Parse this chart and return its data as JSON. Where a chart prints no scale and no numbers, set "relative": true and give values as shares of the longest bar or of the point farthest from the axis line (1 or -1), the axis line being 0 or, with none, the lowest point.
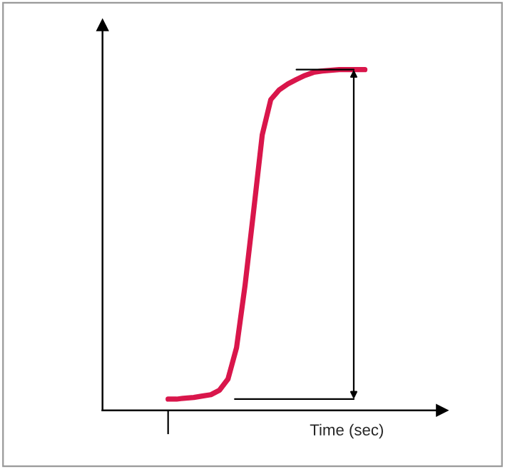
{
  "chart_data": {
    "type": "line",
    "relative": true,
    "xlabel": "Time (sec)",
    "categories": [
      null,
      null,
      null,
      null,
      null,
      null,
      null,
      null,
      null,
      null,
      null,
      null,
      null,
      null,
      null,
      null,
      null,
      null,
      null,
      null,
      null,
      null,
      null,
      null
    ],
    "series": [
      {
        "color": "#d9164b",
        "values": [
          0.033,
          0.033,
          0.036,
          0.038,
          0.042,
          0.046,
          0.059,
          0.092,
          0.184,
          0.368,
          0.586,
          0.808,
          0.912,
          0.941,
          0.958,
          0.971,
          0.983,
          0.992,
          0.996,
          0.998,
          1.0,
          1.0,
          1.0,
          1.0
        ]
      }
    ],
    "marker": "none",
    "line_style": "solid",
    "grid": false
  }
}
